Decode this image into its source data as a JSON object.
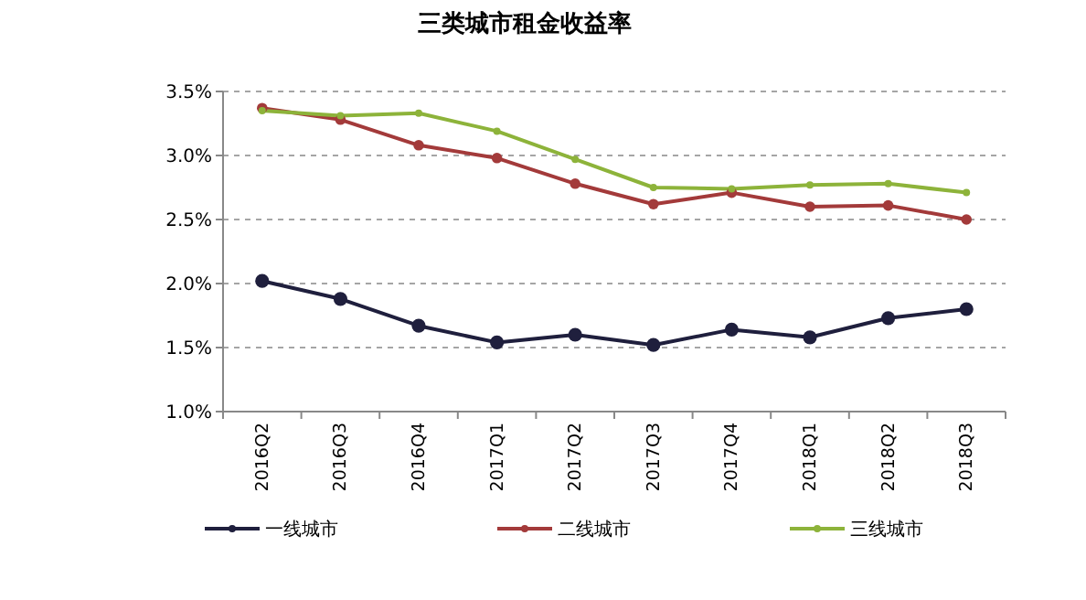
{
  "chart_data": {
    "type": "line",
    "title": "三类城市租金收益率",
    "categories": [
      "2016Q2",
      "2016Q3",
      "2016Q4",
      "2017Q1",
      "2017Q2",
      "2017Q3",
      "2017Q4",
      "2018Q1",
      "2018Q2",
      "2018Q3"
    ],
    "series": [
      {
        "name": "一线城市",
        "color": "#1f1f3d",
        "values": [
          2.02,
          1.88,
          1.67,
          1.54,
          1.6,
          1.52,
          1.64,
          1.58,
          1.73,
          1.8
        ]
      },
      {
        "name": "二线城市",
        "color": "#a33a3a",
        "values": [
          3.37,
          3.28,
          3.08,
          2.98,
          2.78,
          2.62,
          2.71,
          2.6,
          2.61,
          2.5
        ]
      },
      {
        "name": "三线城市",
        "color": "#8db33a",
        "values": [
          3.35,
          3.31,
          3.33,
          3.19,
          2.97,
          2.75,
          2.74,
          2.77,
          2.78,
          2.71
        ]
      }
    ],
    "ylim": [
      1.0,
      3.5
    ],
    "yticks": [
      {
        "value": 1.0,
        "label": "1.0%"
      },
      {
        "value": 1.5,
        "label": "1.5%"
      },
      {
        "value": 2.0,
        "label": "2.0%"
      },
      {
        "value": 2.5,
        "label": "2.5%"
      },
      {
        "value": 3.0,
        "label": "3.0%"
      },
      {
        "value": 3.5,
        "label": "3.5%"
      }
    ],
    "grid": "y",
    "legend": "bottom",
    "marker": "circle",
    "line_style": "solid"
  }
}
